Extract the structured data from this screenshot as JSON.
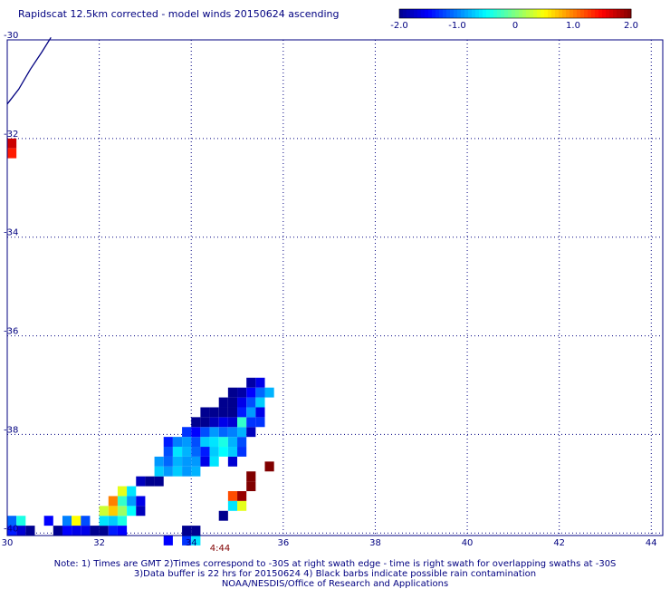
{
  "title": "Rapidscat 12.5km corrected - model winds 20150624 ascending",
  "colorbar": {
    "tick_labels": [
      "-2.0",
      "-1.0",
      "0",
      "1.0",
      "2.0"
    ],
    "range": [
      -2.0,
      2.0
    ]
  },
  "map": {
    "x_ticks": [
      30,
      32,
      34,
      36,
      38,
      40,
      42,
      44
    ],
    "y_ticks": [
      -30,
      -32,
      -34,
      -36,
      -38,
      -40
    ],
    "x_range": [
      30,
      44.25
    ],
    "y_range": [
      -30,
      -40.05
    ],
    "grid": "dotted"
  },
  "time_label": "4:44",
  "footer": {
    "line1": "Note: 1) Times are GMT 2)Times correspond to -30S at right swath edge - time is right swath for overlapping swaths at -30S",
    "line2": "3)Data buffer is 22 hrs for 20150624 4) Black barbs indicate possible rain contamination",
    "line3": "NOAA/NESDIS/Office of Research and Applications"
  },
  "colors": {
    "text": "#000080",
    "time_label": "#800000",
    "grid": "#000080",
    "coast": "#000080"
  },
  "chart_data": {
    "type": "heatmap",
    "x_key": "longitude",
    "y_key": "latitude",
    "cells": [
      {
        "lon": 30.1,
        "lat": -32.1,
        "value": 1.7
      },
      {
        "lon": 30.1,
        "lat": -32.3,
        "value": 1.4
      },
      {
        "lon": 30.1,
        "lat": -39.75,
        "value": -1.1
      },
      {
        "lon": 30.3,
        "lat": -39.75,
        "value": -0.4
      },
      {
        "lon": 30.1,
        "lat": -39.95,
        "value": -1.4
      },
      {
        "lon": 30.3,
        "lat": -39.95,
        "value": -1.7
      },
      {
        "lon": 30.5,
        "lat": -39.95,
        "value": -2.0
      },
      {
        "lon": 30.9,
        "lat": -39.75,
        "value": -1.5
      },
      {
        "lon": 31.1,
        "lat": -39.95,
        "value": -2.0
      },
      {
        "lon": 31.3,
        "lat": -39.95,
        "value": -1.5
      },
      {
        "lon": 31.3,
        "lat": -39.75,
        "value": -1.0
      },
      {
        "lon": 31.5,
        "lat": -39.75,
        "value": 0.5
      },
      {
        "lon": 31.5,
        "lat": -39.95,
        "value": -1.6
      },
      {
        "lon": 31.7,
        "lat": -39.75,
        "value": -1.2
      },
      {
        "lon": 31.7,
        "lat": -39.95,
        "value": -1.6
      },
      {
        "lon": 31.9,
        "lat": -39.95,
        "value": -2.0
      },
      {
        "lon": 32.1,
        "lat": -39.95,
        "value": -2.0
      },
      {
        "lon": 32.1,
        "lat": -39.75,
        "value": -0.6
      },
      {
        "lon": 32.1,
        "lat": -39.55,
        "value": 0.3
      },
      {
        "lon": 32.3,
        "lat": -39.75,
        "value": -0.7
      },
      {
        "lon": 32.3,
        "lat": -39.95,
        "value": -1.4
      },
      {
        "lon": 32.3,
        "lat": -39.55,
        "value": 0.7
      },
      {
        "lon": 32.3,
        "lat": -39.35,
        "value": 1.0
      },
      {
        "lon": 32.5,
        "lat": -39.75,
        "value": -0.4
      },
      {
        "lon": 32.5,
        "lat": -39.95,
        "value": -1.5
      },
      {
        "lon": 32.5,
        "lat": -39.55,
        "value": 0.1
      },
      {
        "lon": 32.5,
        "lat": -39.35,
        "value": -0.3
      },
      {
        "lon": 32.5,
        "lat": -39.15,
        "value": 0.4
      },
      {
        "lon": 32.7,
        "lat": -39.55,
        "value": -0.5
      },
      {
        "lon": 32.7,
        "lat": -39.35,
        "value": -0.9
      },
      {
        "lon": 32.7,
        "lat": -39.15,
        "value": -0.6
      },
      {
        "lon": 32.9,
        "lat": -39.35,
        "value": -1.6
      },
      {
        "lon": 32.9,
        "lat": -39.55,
        "value": -1.8
      },
      {
        "lon": 32.9,
        "lat": -38.95,
        "value": -1.8
      },
      {
        "lon": 33.1,
        "lat": -38.95,
        "value": -2.0
      },
      {
        "lon": 33.3,
        "lat": -38.95,
        "value": -2.0
      },
      {
        "lon": 33.3,
        "lat": -38.75,
        "value": -0.7
      },
      {
        "lon": 33.3,
        "lat": -38.55,
        "value": -0.9
      },
      {
        "lon": 33.5,
        "lat": -38.75,
        "value": -0.9
      },
      {
        "lon": 33.5,
        "lat": -38.55,
        "value": -1.1
      },
      {
        "lon": 33.5,
        "lat": -38.35,
        "value": -1.2
      },
      {
        "lon": 33.5,
        "lat": -38.15,
        "value": -1.4
      },
      {
        "lon": 33.7,
        "lat": -38.75,
        "value": -0.7
      },
      {
        "lon": 33.7,
        "lat": -38.55,
        "value": -0.8
      },
      {
        "lon": 33.7,
        "lat": -38.35,
        "value": -0.6
      },
      {
        "lon": 33.7,
        "lat": -38.15,
        "value": -1.0
      },
      {
        "lon": 33.9,
        "lat": -38.75,
        "value": -0.9
      },
      {
        "lon": 33.9,
        "lat": -38.55,
        "value": -0.9
      },
      {
        "lon": 33.9,
        "lat": -38.35,
        "value": -0.8
      },
      {
        "lon": 33.9,
        "lat": -38.15,
        "value": -0.9
      },
      {
        "lon": 33.9,
        "lat": -37.95,
        "value": -1.3
      },
      {
        "lon": 34.1,
        "lat": -38.75,
        "value": -0.8
      },
      {
        "lon": 34.1,
        "lat": -38.55,
        "value": -0.9
      },
      {
        "lon": 34.1,
        "lat": -38.35,
        "value": -1.1
      },
      {
        "lon": 34.1,
        "lat": -38.15,
        "value": -1.2
      },
      {
        "lon": 34.1,
        "lat": -37.95,
        "value": -1.5
      },
      {
        "lon": 34.1,
        "lat": -37.75,
        "value": -2.0
      },
      {
        "lon": 34.3,
        "lat": -38.55,
        "value": -1.6
      },
      {
        "lon": 34.3,
        "lat": -38.35,
        "value": -1.4
      },
      {
        "lon": 34.3,
        "lat": -38.15,
        "value": -0.7
      },
      {
        "lon": 34.3,
        "lat": -37.95,
        "value": -1.2
      },
      {
        "lon": 34.3,
        "lat": -37.75,
        "value": -2.0
      },
      {
        "lon": 34.3,
        "lat": -37.55,
        "value": -2.0
      },
      {
        "lon": 34.5,
        "lat": -38.55,
        "value": -0.6
      },
      {
        "lon": 34.5,
        "lat": -38.35,
        "value": -0.7
      },
      {
        "lon": 34.5,
        "lat": -38.15,
        "value": -0.6
      },
      {
        "lon": 34.5,
        "lat": -37.95,
        "value": -0.9
      },
      {
        "lon": 34.5,
        "lat": -37.75,
        "value": -1.8
      },
      {
        "lon": 34.5,
        "lat": -37.55,
        "value": -2.0
      },
      {
        "lon": 34.7,
        "lat": -38.35,
        "value": -0.5
      },
      {
        "lon": 34.7,
        "lat": -38.15,
        "value": -0.4
      },
      {
        "lon": 34.7,
        "lat": -37.95,
        "value": -1.1
      },
      {
        "lon": 34.7,
        "lat": -37.75,
        "value": -1.6
      },
      {
        "lon": 34.7,
        "lat": -37.55,
        "value": -2.0
      },
      {
        "lon": 34.7,
        "lat": -37.35,
        "value": -2.0
      },
      {
        "lon": 34.9,
        "lat": -38.55,
        "value": -1.7
      },
      {
        "lon": 34.9,
        "lat": -38.35,
        "value": -0.7
      },
      {
        "lon": 34.9,
        "lat": -38.15,
        "value": -0.8
      },
      {
        "lon": 34.9,
        "lat": -37.95,
        "value": -1.0
      },
      {
        "lon": 34.9,
        "lat": -37.75,
        "value": -1.7
      },
      {
        "lon": 34.9,
        "lat": -37.55,
        "value": -2.0
      },
      {
        "lon": 34.9,
        "lat": -37.35,
        "value": -2.0
      },
      {
        "lon": 34.9,
        "lat": -37.15,
        "value": -2.0
      },
      {
        "lon": 35.1,
        "lat": -38.35,
        "value": -1.3
      },
      {
        "lon": 35.1,
        "lat": -38.15,
        "value": -1.2
      },
      {
        "lon": 35.1,
        "lat": -37.95,
        "value": -0.8
      },
      {
        "lon": 35.1,
        "lat": -37.75,
        "value": -0.3
      },
      {
        "lon": 35.1,
        "lat": -37.55,
        "value": -1.4
      },
      {
        "lon": 35.1,
        "lat": -37.35,
        "value": -1.6
      },
      {
        "lon": 35.1,
        "lat": -37.15,
        "value": -1.9
      },
      {
        "lon": 35.3,
        "lat": -37.95,
        "value": -1.8
      },
      {
        "lon": 35.3,
        "lat": -37.75,
        "value": -1.3
      },
      {
        "lon": 35.3,
        "lat": -37.55,
        "value": -0.9
      },
      {
        "lon": 35.3,
        "lat": -37.35,
        "value": -1.2
      },
      {
        "lon": 35.3,
        "lat": -37.15,
        "value": -1.5
      },
      {
        "lon": 35.3,
        "lat": -36.95,
        "value": -1.9
      },
      {
        "lon": 35.5,
        "lat": -37.75,
        "value": -1.3
      },
      {
        "lon": 35.5,
        "lat": -37.55,
        "value": -1.6
      },
      {
        "lon": 35.5,
        "lat": -37.35,
        "value": -0.7
      },
      {
        "lon": 35.5,
        "lat": -37.15,
        "value": -1.1
      },
      {
        "lon": 35.5,
        "lat": -36.95,
        "value": -1.6
      },
      {
        "lon": 35.7,
        "lat": -37.15,
        "value": -0.8
      },
      {
        "lon": 35.7,
        "lat": -38.65,
        "value": 2.0
      },
      {
        "lon": 35.3,
        "lat": -38.85,
        "value": 2.0
      },
      {
        "lon": 35.3,
        "lat": -39.05,
        "value": 2.0
      },
      {
        "lon": 35.1,
        "lat": -39.25,
        "value": 1.9
      },
      {
        "lon": 34.9,
        "lat": -39.25,
        "value": 1.2
      },
      {
        "lon": 35.1,
        "lat": -39.45,
        "value": 0.4
      },
      {
        "lon": 34.9,
        "lat": -39.45,
        "value": -0.6
      },
      {
        "lon": 34.7,
        "lat": -39.65,
        "value": -2.0
      },
      {
        "lon": 33.9,
        "lat": -39.95,
        "value": -2.0
      },
      {
        "lon": 34.1,
        "lat": -39.95,
        "value": -2.0
      },
      {
        "lon": 33.5,
        "lat": -40.15,
        "value": -1.5
      },
      {
        "lon": 33.9,
        "lat": -40.15,
        "value": -1.3
      },
      {
        "lon": 34.1,
        "lat": -40.15,
        "value": -0.6
      }
    ],
    "coastline": [
      {
        "lon": 30.0,
        "lat": -31.3
      },
      {
        "lon": 30.25,
        "lat": -31.0
      },
      {
        "lon": 30.5,
        "lat": -30.6
      },
      {
        "lon": 30.75,
        "lat": -30.25
      },
      {
        "lon": 30.95,
        "lat": -29.95
      }
    ]
  }
}
